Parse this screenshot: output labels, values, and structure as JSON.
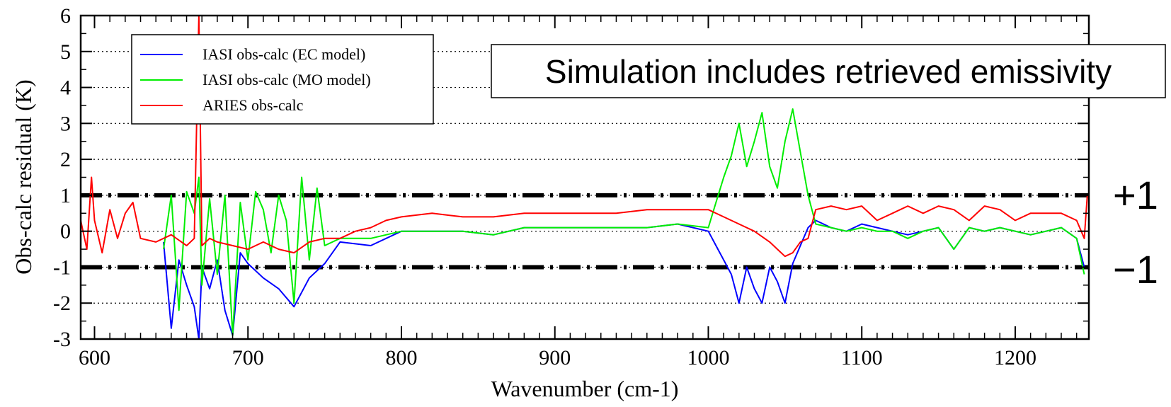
{
  "chart_data": {
    "type": "line",
    "title": "",
    "xlabel": "Wavenumber (cm-1)",
    "ylabel": "Obs-calc residual (K)",
    "xlim": [
      591,
      1248
    ],
    "ylim": [
      -3,
      6
    ],
    "x_ticks": [
      600,
      700,
      800,
      900,
      1000,
      1100,
      1200
    ],
    "y_ticks": [
      6,
      5,
      4,
      3,
      2,
      1,
      0,
      -1,
      -2,
      -3
    ],
    "x_tick_labels": [
      "600",
      "700",
      "800",
      "900",
      "1000",
      "1100",
      "1200"
    ],
    "y_tick_labels": [
      "6",
      "5",
      "4",
      "3",
      "2",
      "1",
      "0",
      "-1",
      "-2",
      "-3"
    ],
    "grid": "horizontal dotted",
    "legend_position": "top-left",
    "series": [
      {
        "name": "IASI obs-calc (EC model)",
        "color": "#0000ff",
        "x": [
          645,
          650,
          655,
          660,
          665,
          668,
          670,
          675,
          680,
          685,
          690,
          695,
          700,
          710,
          720,
          730,
          740,
          750,
          760,
          780,
          800,
          820,
          840,
          860,
          880,
          900,
          920,
          940,
          960,
          980,
          1000,
          1005,
          1010,
          1015,
          1020,
          1025,
          1030,
          1035,
          1040,
          1045,
          1050,
          1055,
          1060,
          1065,
          1070,
          1080,
          1090,
          1100,
          1110,
          1120,
          1130,
          1140,
          1150,
          1160,
          1170,
          1180,
          1190,
          1200,
          1210,
          1220,
          1230,
          1240,
          1245
        ],
        "y": [
          -0.3,
          -2.7,
          -0.8,
          -1.5,
          -2.1,
          -3.0,
          -1.0,
          -1.6,
          -0.8,
          -2.2,
          -2.9,
          -0.6,
          -0.9,
          -1.3,
          -1.6,
          -2.1,
          -1.3,
          -0.9,
          -0.3,
          -0.4,
          0.0,
          0.0,
          0.0,
          -0.1,
          0.1,
          0.1,
          0.1,
          0.1,
          0.1,
          0.2,
          0.0,
          -0.4,
          -0.8,
          -1.2,
          -2.0,
          -1.0,
          -1.6,
          -2.0,
          -1.0,
          -1.4,
          -2.0,
          -0.9,
          -0.4,
          0.1,
          0.3,
          0.1,
          0.0,
          0.2,
          0.1,
          0.0,
          -0.1,
          0.0,
          0.1,
          -0.5,
          0.1,
          0.0,
          0.1,
          0.0,
          -0.1,
          0.0,
          0.1,
          -0.2,
          -1.0
        ]
      },
      {
        "name": "IASI obs-calc (MO model)",
        "color": "#00ee00",
        "x": [
          645,
          650,
          655,
          660,
          665,
          668,
          670,
          675,
          680,
          685,
          690,
          695,
          700,
          705,
          710,
          715,
          720,
          725,
          730,
          735,
          740,
          745,
          750,
          760,
          780,
          800,
          820,
          840,
          860,
          880,
          900,
          920,
          940,
          960,
          980,
          1000,
          1005,
          1010,
          1015,
          1020,
          1025,
          1030,
          1035,
          1040,
          1045,
          1050,
          1055,
          1060,
          1065,
          1070,
          1080,
          1090,
          1100,
          1110,
          1120,
          1130,
          1140,
          1150,
          1160,
          1170,
          1180,
          1190,
          1200,
          1210,
          1220,
          1230,
          1240,
          1245
        ],
        "y": [
          -0.5,
          1.0,
          -2.2,
          1.1,
          0.5,
          1.5,
          -1.5,
          0.9,
          -1.2,
          1.0,
          -2.9,
          0.8,
          -0.8,
          1.1,
          0.6,
          -0.6,
          1.0,
          0.3,
          -2.0,
          1.5,
          -0.8,
          1.2,
          -0.4,
          -0.2,
          -0.2,
          0.0,
          0.0,
          0.0,
          -0.1,
          0.1,
          0.1,
          0.1,
          0.1,
          0.1,
          0.2,
          0.1,
          0.8,
          1.5,
          2.1,
          3.0,
          1.8,
          2.5,
          3.3,
          1.8,
          1.2,
          2.5,
          3.4,
          2.2,
          1.0,
          0.2,
          0.1,
          0.0,
          0.1,
          0.0,
          0.0,
          -0.2,
          0.0,
          0.1,
          -0.5,
          0.1,
          0.0,
          0.1,
          0.0,
          -0.1,
          0.0,
          0.1,
          -0.2,
          -1.2
        ]
      },
      {
        "name": "ARIES obs-calc",
        "color": "#ff0000",
        "x": [
          591,
          595,
          598,
          600,
          605,
          610,
          615,
          620,
          625,
          630,
          640,
          650,
          660,
          665,
          668,
          670,
          675,
          680,
          690,
          700,
          710,
          720,
          730,
          740,
          750,
          760,
          770,
          780,
          790,
          800,
          820,
          840,
          860,
          880,
          900,
          920,
          940,
          960,
          980,
          1000,
          1010,
          1020,
          1030,
          1040,
          1045,
          1050,
          1055,
          1060,
          1065,
          1070,
          1080,
          1090,
          1100,
          1110,
          1120,
          1130,
          1140,
          1150,
          1160,
          1170,
          1180,
          1190,
          1200,
          1210,
          1220,
          1230,
          1240,
          1245,
          1247
        ],
        "y": [
          0.3,
          -0.5,
          1.5,
          0.3,
          -0.6,
          0.6,
          -0.2,
          0.5,
          0.8,
          -0.2,
          -0.3,
          -0.1,
          -0.4,
          -0.2,
          6.0,
          -0.4,
          -0.2,
          -0.3,
          -0.4,
          -0.5,
          -0.3,
          -0.5,
          -0.6,
          -0.3,
          -0.2,
          -0.2,
          0.0,
          0.1,
          0.3,
          0.4,
          0.5,
          0.4,
          0.4,
          0.5,
          0.5,
          0.5,
          0.5,
          0.6,
          0.6,
          0.6,
          0.4,
          0.2,
          0.0,
          -0.3,
          -0.5,
          -0.7,
          -0.6,
          -0.3,
          -0.2,
          0.6,
          0.7,
          0.6,
          0.7,
          0.3,
          0.5,
          0.7,
          0.5,
          0.7,
          0.6,
          0.3,
          0.7,
          0.6,
          0.3,
          0.5,
          0.5,
          0.5,
          0.3,
          -0.2,
          1.0
        ]
      }
    ],
    "reference_lines": [
      {
        "y": 1,
        "label": "+1",
        "style": "dash-dot",
        "color": "#000000"
      },
      {
        "y": -1,
        "label": "−1",
        "style": "dash-dot",
        "color": "#000000"
      }
    ],
    "annotation": "Simulation includes retrieved emissivity"
  }
}
